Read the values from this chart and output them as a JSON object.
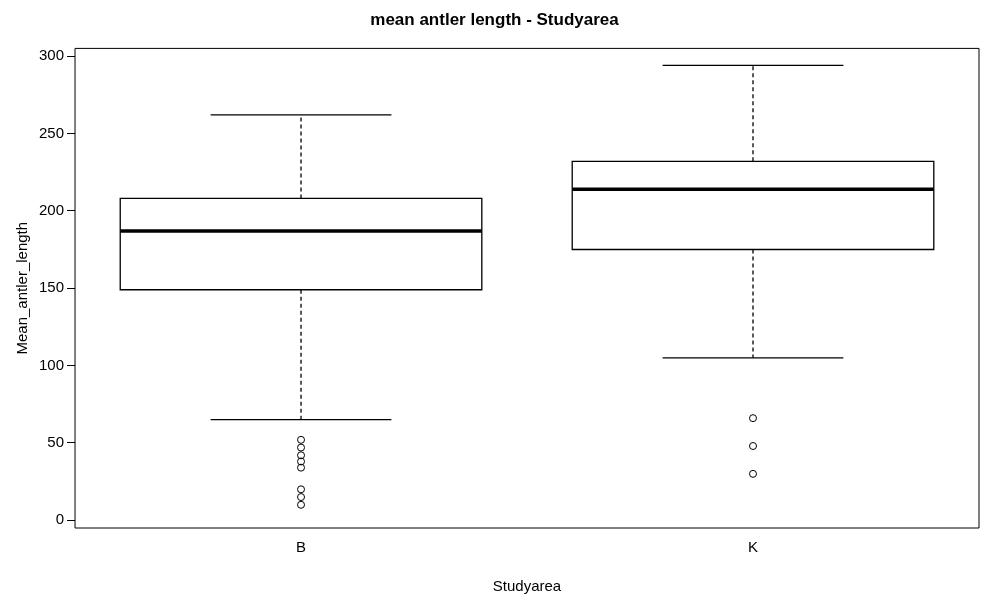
{
  "chart_data": {
    "type": "box",
    "title": "mean antler length - Studyarea",
    "xlabel": "Studyarea",
    "ylabel": "Mean_antler_length",
    "categories": [
      "B",
      "K"
    ],
    "boxes": [
      {
        "low": 65,
        "q1": 149,
        "median": 187,
        "q3": 208,
        "high": 262,
        "outliers": [
          10,
          15,
          20,
          34,
          38,
          42,
          47,
          52
        ]
      },
      {
        "low": 105,
        "q1": 175,
        "median": 214,
        "q3": 232,
        "high": 294,
        "outliers": [
          30,
          48,
          66
        ]
      }
    ],
    "ylim": [
      -5,
      305
    ],
    "yticks": [
      0,
      50,
      100,
      150,
      200,
      250,
      300
    ],
    "grid": false,
    "legend": false,
    "marker": "circle"
  }
}
